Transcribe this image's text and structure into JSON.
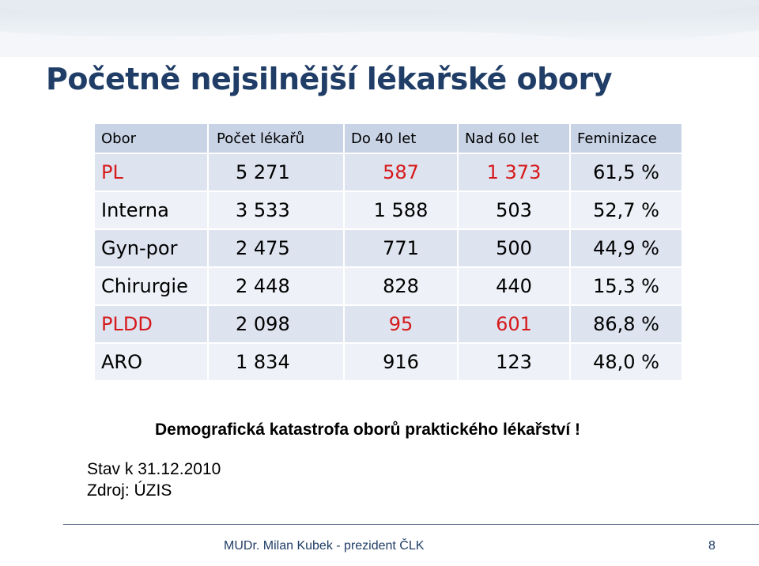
{
  "slide": {
    "title": "Početně nejsilnější lékařské obory",
    "table": {
      "headers": [
        "Obor",
        "Počet lékařů",
        "Do 40 let",
        "Nad 60 let",
        "Feminizace"
      ],
      "rows": [
        [
          "PL",
          "5 271",
          "587",
          "1 373",
          "61,5 %"
        ],
        [
          "Interna",
          "3 533",
          "1 588",
          "503",
          "52,7 %"
        ],
        [
          "Gyn-por",
          "2 475",
          "771",
          "500",
          "44,9 %"
        ],
        [
          "Chirurgie",
          "2 448",
          "828",
          "440",
          "15,3 %"
        ],
        [
          "PLDD",
          "2 098",
          "95",
          "601",
          "86,8 %"
        ],
        [
          "ARO",
          "1 834",
          "916",
          "123",
          "48,0 %"
        ]
      ],
      "highlight_color": "#d6191b"
    },
    "note": "Demografická katastrofa oborů praktického lékařství !",
    "status_date": "Stav k 31.12.2010",
    "source": "Zdroj: ÚZIS"
  },
  "footer": {
    "author": "MUDr. Milan Kubek - prezident ČLK",
    "page_number": "8"
  },
  "colors": {
    "title": "#1f3d66",
    "header_bg": "#c9d3e6",
    "row_bg_dark": "#dde3ef",
    "row_bg_light": "#eef1f7"
  }
}
